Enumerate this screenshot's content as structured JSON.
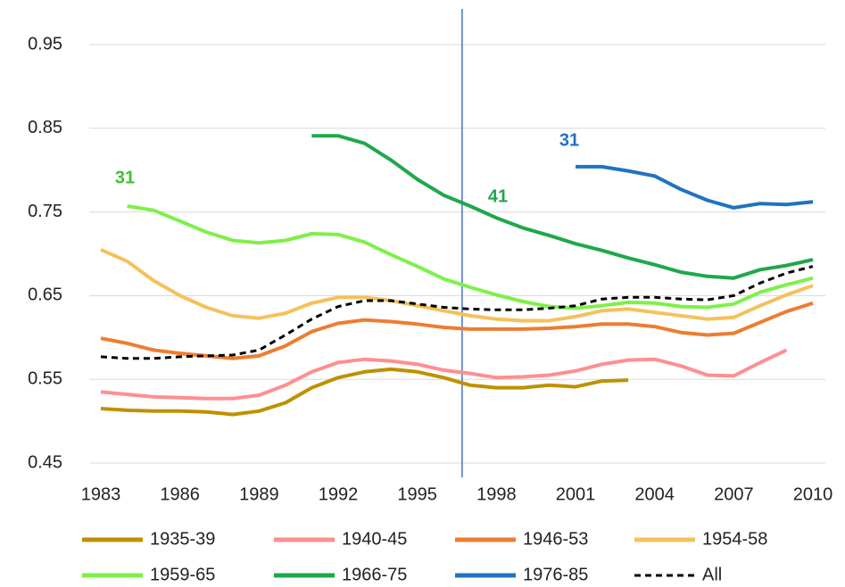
{
  "chart_data": {
    "type": "line",
    "x": [
      1983,
      1984,
      1985,
      1986,
      1987,
      1988,
      1989,
      1990,
      1991,
      1992,
      1993,
      1994,
      1995,
      1996,
      1997,
      1998,
      1999,
      2000,
      2001,
      2002,
      2003,
      2004,
      2005,
      2006,
      2007,
      2008,
      2009,
      2010
    ],
    "xlim": [
      1983,
      2010
    ],
    "xticks": [
      1983,
      1986,
      1989,
      1992,
      1995,
      1998,
      2001,
      2004,
      2007,
      2010
    ],
    "ylim": [
      0.45,
      0.95
    ],
    "yticks": [
      0.45,
      0.55,
      0.65,
      0.75,
      0.85,
      0.95
    ],
    "grid": true,
    "vline": 1996.7,
    "vline_color": "#4472c4",
    "annotations": [
      "31",
      "41",
      "31"
    ],
    "series": [
      {
        "name": "1935-39",
        "color": "#bf9000",
        "values": [
          0.515,
          0.513,
          0.512,
          0.512,
          0.511,
          0.508,
          0.512,
          0.522,
          0.54,
          0.552,
          0.559,
          0.562,
          0.559,
          0.552,
          0.543,
          0.54,
          0.54,
          0.543,
          0.541,
          0.548,
          0.549,
          null,
          null,
          null,
          null,
          null,
          null,
          null
        ]
      },
      {
        "name": "1940-45",
        "color": "#ff8f8f",
        "values": [
          0.535,
          0.532,
          0.529,
          0.528,
          0.527,
          0.527,
          0.531,
          0.543,
          0.559,
          0.57,
          0.574,
          0.572,
          0.568,
          0.561,
          0.557,
          0.552,
          0.553,
          0.555,
          0.56,
          0.568,
          0.573,
          0.574,
          0.566,
          0.555,
          0.554,
          0.57,
          0.585,
          null
        ]
      },
      {
        "name": "1946-53",
        "color": "#ed7d31",
        "values": [
          0.599,
          0.593,
          0.585,
          0.581,
          0.578,
          0.575,
          0.578,
          0.59,
          0.607,
          0.617,
          0.621,
          0.619,
          0.616,
          0.612,
          0.61,
          0.61,
          0.61,
          0.611,
          0.613,
          0.616,
          0.616,
          0.613,
          0.606,
          0.603,
          0.605,
          0.618,
          0.631,
          0.641
        ]
      },
      {
        "name": "1954-58",
        "color": "#f4c15c",
        "values": [
          0.705,
          0.691,
          0.668,
          0.65,
          0.636,
          0.626,
          0.623,
          0.629,
          0.641,
          0.648,
          0.648,
          0.644,
          0.638,
          0.632,
          0.626,
          0.622,
          0.62,
          0.62,
          0.625,
          0.632,
          0.634,
          0.63,
          0.626,
          0.622,
          0.624,
          0.638,
          0.651,
          0.662
        ]
      },
      {
        "name": "1959-65",
        "color": "#7ef04a",
        "values": [
          null,
          0.757,
          0.752,
          0.739,
          0.726,
          0.716,
          0.713,
          0.716,
          0.724,
          0.723,
          0.714,
          0.699,
          0.685,
          0.67,
          0.66,
          0.651,
          0.643,
          0.637,
          0.635,
          0.638,
          0.642,
          0.641,
          0.637,
          0.636,
          0.64,
          0.654,
          0.663,
          0.671
        ]
      },
      {
        "name": "1966-75",
        "color": "#1ea84a",
        "values": [
          null,
          null,
          null,
          null,
          null,
          null,
          null,
          null,
          0.841,
          0.841,
          0.832,
          0.812,
          0.789,
          0.77,
          0.757,
          0.743,
          0.731,
          0.722,
          0.712,
          0.704,
          0.695,
          0.687,
          0.678,
          0.673,
          0.671,
          0.681,
          0.686,
          0.693
        ]
      },
      {
        "name": "1976-85",
        "color": "#1f73c0",
        "values": [
          null,
          null,
          null,
          null,
          null,
          null,
          null,
          null,
          null,
          null,
          null,
          null,
          null,
          null,
          null,
          null,
          null,
          null,
          0.804,
          0.804,
          0.799,
          0.793,
          0.777,
          0.764,
          0.755,
          0.76,
          0.759,
          0.762
        ]
      },
      {
        "name": "All",
        "color": "#000000",
        "dashed": true,
        "values": [
          0.577,
          0.575,
          0.575,
          0.577,
          0.578,
          0.579,
          0.585,
          0.603,
          0.622,
          0.637,
          0.644,
          0.644,
          0.64,
          0.636,
          0.634,
          0.633,
          0.633,
          0.635,
          0.638,
          0.646,
          0.648,
          0.648,
          0.646,
          0.645,
          0.65,
          0.665,
          0.677,
          0.685
        ]
      }
    ]
  }
}
